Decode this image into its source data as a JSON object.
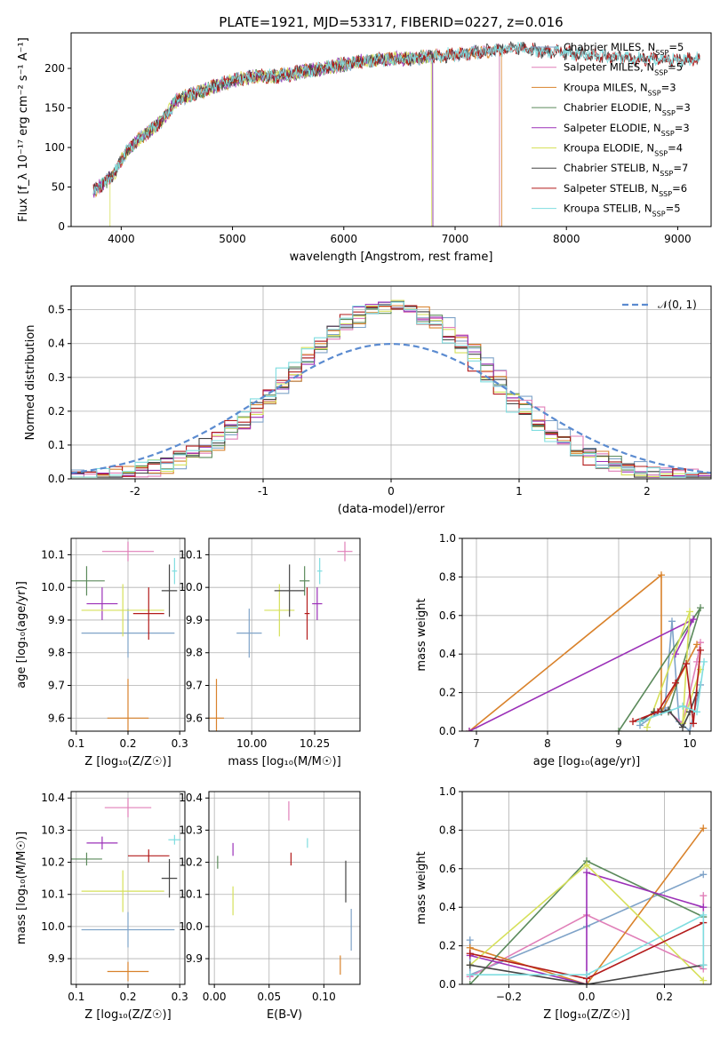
{
  "title": "PLATE=1921, MJD=53317, FIBERID=0227, z=0.016",
  "colors": [
    "#7fa3c8",
    "#e07fb8",
    "#d9822b",
    "#5b8a5b",
    "#9b30b8",
    "#d6e05a",
    "#444444",
    "#b31b1b",
    "#7fdde0"
  ],
  "chart_data": [
    {
      "type": "line",
      "id": "spectrum",
      "xlabel": "wavelength [Angstrom, rest frame]",
      "ylabel": "Flux [f_λ 10⁻¹⁷ erg cm⁻² s⁻¹ A⁻¹]",
      "xlim": [
        3550,
        9300
      ],
      "ylim": [
        0,
        245
      ],
      "xticks": [
        4000,
        5000,
        6000,
        7000,
        8000,
        9000
      ],
      "yticks": [
        0,
        50,
        100,
        150,
        200
      ],
      "legend_position": "upper-right",
      "series": [
        {
          "name": "Chabrier MILES, N_SSP=5",
          "start": 3750,
          "end": 7400
        },
        {
          "name": "Salpeter MILES, N_SSP=5",
          "start": 3750,
          "end": 7400
        },
        {
          "name": "Kroupa MILES, N_SSP=3",
          "start": 3750,
          "end": 7420
        },
        {
          "name": "Chabrier ELODIE, N_SSP=3",
          "start": 3750,
          "end": 6800
        },
        {
          "name": "Salpeter ELODIE, N_SSP=3",
          "start": 3750,
          "end": 6800
        },
        {
          "name": "Kroupa ELODIE, N_SSP=4",
          "start": 3900,
          "end": 6790
        },
        {
          "name": "Chabrier STELIB, N_SSP=7",
          "start": 3750,
          "end": 9200
        },
        {
          "name": "Salpeter STELIB, N_SSP=6",
          "start": 3750,
          "end": 9200
        },
        {
          "name": "Kroupa STELIB, N_SSP=5",
          "start": 3750,
          "end": 9200
        }
      ],
      "continuum": {
        "x": [
          3750,
          3850,
          3950,
          4050,
          4150,
          4300,
          4400,
          4500,
          4600,
          4800,
          5000,
          5200,
          5400,
          5600,
          5800,
          6000,
          6200,
          6400,
          6600,
          6800,
          7000,
          7200,
          7400,
          7600,
          7800,
          8000,
          8200,
          8400,
          8600,
          8800,
          9000,
          9200
        ],
        "y": [
          45,
          55,
          70,
          95,
          110,
          125,
          140,
          160,
          165,
          175,
          185,
          190,
          190,
          195,
          200,
          205,
          210,
          212,
          212,
          215,
          218,
          220,
          224,
          225,
          222,
          220,
          218,
          215,
          212,
          212,
          210,
          212
        ]
      }
    },
    {
      "type": "step",
      "id": "residuals",
      "xlabel": "(data-model)/error",
      "ylabel": "Normed distribution",
      "xlim": [
        -2.5,
        2.5
      ],
      "ylim": [
        0,
        0.57
      ],
      "xticks": [
        -2,
        -1,
        0,
        1,
        2
      ],
      "yticks": [
        0.0,
        0.1,
        0.2,
        0.3,
        0.4,
        0.5
      ],
      "legend_label": "𝒩(0, 1)",
      "legend_position": "upper-right"
    },
    {
      "type": "errorbar",
      "id": "age-vs-Z",
      "xlabel": "Z [log₁₀(Z/Z☉)]",
      "ylabel": "age  [log₁₀(age/yr)]",
      "xlim": [
        0.09,
        0.31
      ],
      "ylim": [
        9.56,
        10.15
      ],
      "xticks": [
        0.1,
        0.2,
        0.3
      ],
      "yticks": [
        9.6,
        9.7,
        9.8,
        9.9,
        10.0,
        10.1
      ],
      "points": [
        {
          "x": 0.2,
          "y": 9.86,
          "xerr": 0.09,
          "yerr": 0.075
        },
        {
          "x": 0.2,
          "y": 10.11,
          "xerr": 0.05,
          "yerr": 0.03
        },
        {
          "x": 0.2,
          "y": 9.6,
          "xerr": 0.04,
          "yerr": 0.12
        },
        {
          "x": 0.12,
          "y": 10.02,
          "xerr": 0.035,
          "yerr": 0.045
        },
        {
          "x": 0.15,
          "y": 9.95,
          "xerr": 0.03,
          "yerr": 0.05
        },
        {
          "x": 0.19,
          "y": 9.93,
          "xerr": 0.08,
          "yerr": 0.08
        },
        {
          "x": 0.28,
          "y": 9.99,
          "xerr": 0.015,
          "yerr": 0.08
        },
        {
          "x": 0.24,
          "y": 9.92,
          "xerr": 0.03,
          "yerr": 0.08
        },
        {
          "x": 0.29,
          "y": 10.05,
          "xerr": 0.005,
          "yerr": 0.04
        }
      ]
    },
    {
      "type": "errorbar",
      "id": "age-vs-mass",
      "xlabel": "mass [log₁₀(M/M☉)]",
      "xlim": [
        9.83,
        10.43
      ],
      "ylim": [
        9.56,
        10.15
      ],
      "xticks": [
        10.0,
        10.25
      ],
      "yticks": [
        9.6,
        9.7,
        9.8,
        9.9,
        10.0,
        10.1
      ],
      "points": [
        {
          "x": 9.99,
          "y": 9.86,
          "xerr": 0.05,
          "yerr": 0.075
        },
        {
          "x": 10.37,
          "y": 10.11,
          "xerr": 0.03,
          "yerr": 0.03
        },
        {
          "x": 9.86,
          "y": 9.6,
          "xerr": 0.03,
          "yerr": 0.12
        },
        {
          "x": 10.21,
          "y": 10.02,
          "xerr": 0.02,
          "yerr": 0.045
        },
        {
          "x": 10.26,
          "y": 9.95,
          "xerr": 0.02,
          "yerr": 0.05
        },
        {
          "x": 10.11,
          "y": 9.93,
          "xerr": 0.06,
          "yerr": 0.08
        },
        {
          "x": 10.15,
          "y": 9.99,
          "xerr": 0.06,
          "yerr": 0.08
        },
        {
          "x": 10.22,
          "y": 9.92,
          "xerr": 0.01,
          "yerr": 0.08
        },
        {
          "x": 10.27,
          "y": 10.05,
          "xerr": 0.01,
          "yerr": 0.04
        }
      ]
    },
    {
      "type": "line",
      "id": "weight-vs-age",
      "xlabel": "age  [log₁₀(age/yr)]",
      "ylabel": "mass weight",
      "xlim": [
        6.8,
        10.3
      ],
      "ylim": [
        0,
        1
      ],
      "xticks": [
        7,
        8,
        9,
        10
      ],
      "yticks": [
        0.0,
        0.2,
        0.4,
        0.6,
        0.8,
        1.0
      ],
      "series": [
        {
          "x": [
            9.3,
            9.65,
            9.75,
            9.85,
            10.0,
            10.15
          ],
          "y": [
            0.03,
            0.12,
            0.57,
            0.05,
            0.0,
            0.24
          ]
        },
        {
          "x": [
            9.7,
            9.9,
            10.1,
            10.15
          ],
          "y": [
            0.1,
            0.04,
            0.36,
            0.46
          ]
        },
        {
          "x": [
            6.9,
            9.6,
            9.6,
            10.1
          ],
          "y": [
            0.0,
            0.81,
            0.1,
            0.45
          ]
        },
        {
          "x": [
            9.0,
            10.15,
            9.7
          ],
          "y": [
            0.0,
            0.64,
            0.1
          ]
        },
        {
          "x": [
            6.9,
            10.05,
            9.8
          ],
          "y": [
            0.0,
            0.58,
            0.4
          ]
        },
        {
          "x": [
            9.4,
            10.0,
            9.9,
            10.15
          ],
          "y": [
            0.02,
            0.62,
            0.04,
            0.32
          ]
        },
        {
          "x": [
            9.3,
            9.5,
            9.6,
            9.7,
            9.9,
            10.0,
            10.1
          ],
          "y": [
            0.05,
            0.1,
            0.1,
            0.11,
            0.02,
            0.1,
            0.2
          ]
        },
        {
          "x": [
            9.2,
            9.55,
            9.8,
            9.95,
            10.05,
            10.15
          ],
          "y": [
            0.05,
            0.1,
            0.25,
            0.35,
            0.04,
            0.42
          ]
        },
        {
          "x": [
            9.3,
            9.9,
            10.1,
            10.2
          ],
          "y": [
            0.05,
            0.13,
            0.1,
            0.36
          ]
        }
      ]
    },
    {
      "type": "errorbar",
      "id": "mass-vs-Z",
      "xlabel": "Z [log₁₀(Z/Z☉)]",
      "ylabel": "mass [log₁₀(M/M☉)]",
      "xlim": [
        0.09,
        0.31
      ],
      "ylim": [
        9.82,
        10.42
      ],
      "xticks": [
        0.1,
        0.2,
        0.3
      ],
      "yticks": [
        9.9,
        10.0,
        10.1,
        10.2,
        10.3,
        10.4
      ],
      "points": [
        {
          "x": 0.2,
          "y": 9.99,
          "xerr": 0.09,
          "yerr": 0.055
        },
        {
          "x": 0.2,
          "y": 10.37,
          "xerr": 0.045,
          "yerr": 0.03
        },
        {
          "x": 0.2,
          "y": 9.86,
          "xerr": 0.04,
          "yerr": 0.03
        },
        {
          "x": 0.12,
          "y": 10.21,
          "xerr": 0.03,
          "yerr": 0.02
        },
        {
          "x": 0.15,
          "y": 10.26,
          "xerr": 0.03,
          "yerr": 0.02
        },
        {
          "x": 0.19,
          "y": 10.11,
          "xerr": 0.08,
          "yerr": 0.065
        },
        {
          "x": 0.28,
          "y": 10.15,
          "xerr": 0.015,
          "yerr": 0.06
        },
        {
          "x": 0.24,
          "y": 10.22,
          "xerr": 0.04,
          "yerr": 0.02
        },
        {
          "x": 0.29,
          "y": 10.27,
          "xerr": 0.012,
          "yerr": 0.015
        }
      ]
    },
    {
      "type": "errorbar",
      "id": "mass-vs-ebv",
      "xlabel": "E(B-V)",
      "xlim": [
        -0.005,
        0.133
      ],
      "ylim": [
        9.82,
        10.42
      ],
      "xticks": [
        0.0,
        0.05,
        0.1
      ],
      "yticks": [
        9.9,
        10.0,
        10.1,
        10.2,
        10.3,
        10.4
      ],
      "points": [
        {
          "x": 0.125,
          "y": 9.99,
          "xerr": 0.0,
          "yerr": 0.065
        },
        {
          "x": 0.068,
          "y": 10.36,
          "xerr": 0.0,
          "yerr": 0.03
        },
        {
          "x": 0.115,
          "y": 9.88,
          "xerr": 0.0,
          "yerr": 0.03
        },
        {
          "x": 0.003,
          "y": 10.2,
          "xerr": 0.0,
          "yerr": 0.02
        },
        {
          "x": 0.017,
          "y": 10.24,
          "xerr": 0.0,
          "yerr": 0.02
        },
        {
          "x": 0.017,
          "y": 10.08,
          "xerr": 0.0,
          "yerr": 0.045
        },
        {
          "x": 0.12,
          "y": 10.14,
          "xerr": 0.0,
          "yerr": 0.065
        },
        {
          "x": 0.07,
          "y": 10.21,
          "xerr": 0.0,
          "yerr": 0.02
        },
        {
          "x": 0.085,
          "y": 10.26,
          "xerr": 0.0,
          "yerr": 0.015
        }
      ]
    },
    {
      "type": "line",
      "id": "weight-vs-Z",
      "xlabel": "Z [log₁₀(Z/Z☉)]",
      "ylabel": "mass weight",
      "xlim": [
        -0.32,
        0.32
      ],
      "ylim": [
        0,
        1
      ],
      "xticks": [
        -0.2,
        0.0,
        0.2
      ],
      "yticks": [
        0.0,
        0.2,
        0.4,
        0.6,
        0.8,
        1.0
      ],
      "series": [
        {
          "x": [
            -0.3,
            -0.3,
            0.0,
            0.3
          ],
          "y": [
            0.23,
            0.05,
            0.3,
            0.57
          ]
        },
        {
          "x": [
            -0.3,
            0.0,
            0.3,
            0.3
          ],
          "y": [
            0.04,
            0.36,
            0.08,
            0.46
          ]
        },
        {
          "x": [
            -0.3,
            0.0,
            0.3
          ],
          "y": [
            0.19,
            0.0,
            0.81
          ]
        },
        {
          "x": [
            -0.3,
            0.0,
            0.3
          ],
          "y": [
            0.0,
            0.64,
            0.35
          ]
        },
        {
          "x": [
            -0.3,
            0.0,
            0.0,
            0.3
          ],
          "y": [
            0.15,
            0.0,
            0.58,
            0.4
          ]
        },
        {
          "x": [
            -0.3,
            0.0,
            0.3
          ],
          "y": [
            0.1,
            0.62,
            0.02
          ]
        },
        {
          "x": [
            -0.3,
            0.0,
            0.3
          ],
          "y": [
            0.1,
            0.0,
            0.1
          ]
        },
        {
          "x": [
            -0.3,
            0.0,
            0.3
          ],
          "y": [
            0.16,
            0.03,
            0.32
          ]
        },
        {
          "x": [
            -0.3,
            0.0,
            0.3,
            0.3
          ],
          "y": [
            0.05,
            0.05,
            0.36,
            0.1
          ]
        }
      ]
    }
  ]
}
